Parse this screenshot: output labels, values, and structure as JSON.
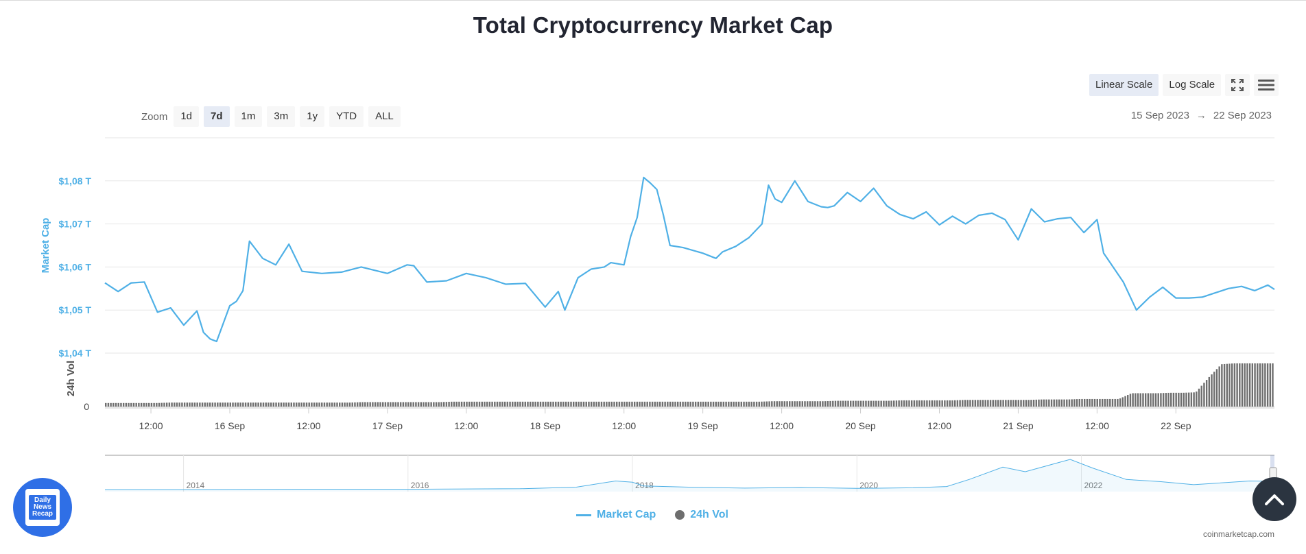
{
  "title": "Total Cryptocurrency Market Cap",
  "scale_buttons": {
    "linear": "Linear Scale",
    "log": "Log Scale",
    "active": "linear"
  },
  "zoom": {
    "label": "Zoom",
    "options": [
      "1d",
      "7d",
      "1m",
      "3m",
      "1y",
      "YTD",
      "ALL"
    ],
    "selected": "7d"
  },
  "range": {
    "from": "15 Sep 2023",
    "arrow": "→",
    "to": "22 Sep 2023"
  },
  "colors": {
    "market_cap": "#4fb0e6",
    "volume": "#6e6e6e",
    "grid": "#e6e6e6"
  },
  "icons": {
    "fullscreen": "fullscreen-icon",
    "menu": "hamburger-menu-icon",
    "scroll_top": "chevron-up-icon"
  },
  "legend": {
    "market_cap": "Market Cap",
    "volume": "24h Vol"
  },
  "credit": "coinmarketcap.com",
  "badge_text": "Daily\nNews\nRecap",
  "chart_data": {
    "type": "line",
    "ylabel": "Market Cap",
    "ylabel_volume": "24h Vol",
    "y_unit_format": "$%s T",
    "yticks": [
      "$1,04 T",
      "$1,05 T",
      "$1,06 T",
      "$1,07 T",
      "$1,08 T"
    ],
    "ytick_values": [
      1.04,
      1.05,
      1.06,
      1.07,
      1.08
    ],
    "volume_ticks": [
      "0"
    ],
    "ylim": [
      1.04,
      1.09
    ],
    "xlim": [
      "2023-09-15 05:00",
      "2023-09-22 15:00"
    ],
    "xticks": [
      "12:00",
      "16 Sep",
      "12:00",
      "17 Sep",
      "12:00",
      "18 Sep",
      "12:00",
      "19 Sep",
      "12:00",
      "20 Sep",
      "12:00",
      "21 Sep",
      "12:00",
      "22 Sep"
    ],
    "xtick_times": [
      "2023-09-15 12:00",
      "2023-09-16 00:00",
      "2023-09-16 12:00",
      "2023-09-17 00:00",
      "2023-09-17 12:00",
      "2023-09-18 00:00",
      "2023-09-18 12:00",
      "2023-09-19 00:00",
      "2023-09-19 12:00",
      "2023-09-20 00:00",
      "2023-09-20 12:00",
      "2023-09-21 00:00",
      "2023-09-21 12:00",
      "2023-09-22 00:00"
    ],
    "series": [
      {
        "name": "Market Cap",
        "x": [
          "2023-09-15 05:00",
          "2023-09-15 07:00",
          "2023-09-15 09:00",
          "2023-09-15 11:00",
          "2023-09-15 13:00",
          "2023-09-15 15:00",
          "2023-09-15 17:00",
          "2023-09-15 19:00",
          "2023-09-15 20:00",
          "2023-09-15 21:00",
          "2023-09-15 22:00",
          "2023-09-16 00:00",
          "2023-09-16 01:00",
          "2023-09-16 02:00",
          "2023-09-16 03:00",
          "2023-09-16 05:00",
          "2023-09-16 07:00",
          "2023-09-16 09:00",
          "2023-09-16 11:00",
          "2023-09-16 14:00",
          "2023-09-16 17:00",
          "2023-09-16 20:00",
          "2023-09-17 00:00",
          "2023-09-17 03:00",
          "2023-09-17 04:00",
          "2023-09-17 06:00",
          "2023-09-17 09:00",
          "2023-09-17 12:00",
          "2023-09-17 15:00",
          "2023-09-17 18:00",
          "2023-09-17 21:00",
          "2023-09-18 00:00",
          "2023-09-18 02:00",
          "2023-09-18 03:00",
          "2023-09-18 05:00",
          "2023-09-18 07:00",
          "2023-09-18 09:00",
          "2023-09-18 10:00",
          "2023-09-18 12:00",
          "2023-09-18 13:00",
          "2023-09-18 14:00",
          "2023-09-18 15:00",
          "2023-09-18 16:00",
          "2023-09-18 17:00",
          "2023-09-18 18:00",
          "2023-09-18 19:00",
          "2023-09-18 21:00",
          "2023-09-19 00:00",
          "2023-09-19 02:00",
          "2023-09-19 03:00",
          "2023-09-19 05:00",
          "2023-09-19 07:00",
          "2023-09-19 09:00",
          "2023-09-19 10:00",
          "2023-09-19 11:00",
          "2023-09-19 12:00",
          "2023-09-19 14:00",
          "2023-09-19 16:00",
          "2023-09-19 18:00",
          "2023-09-19 19:00",
          "2023-09-19 20:00",
          "2023-09-19 22:00",
          "2023-09-20 00:00",
          "2023-09-20 02:00",
          "2023-09-20 04:00",
          "2023-09-20 06:00",
          "2023-09-20 08:00",
          "2023-09-20 10:00",
          "2023-09-20 12:00",
          "2023-09-20 14:00",
          "2023-09-20 16:00",
          "2023-09-20 18:00",
          "2023-09-20 20:00",
          "2023-09-20 22:00",
          "2023-09-21 00:00",
          "2023-09-21 02:00",
          "2023-09-21 04:00",
          "2023-09-21 06:00",
          "2023-09-21 08:00",
          "2023-09-21 10:00",
          "2023-09-21 12:00",
          "2023-09-21 13:00",
          "2023-09-21 14:00",
          "2023-09-21 16:00",
          "2023-09-21 18:00",
          "2023-09-21 20:00",
          "2023-09-21 22:00",
          "2023-09-22 00:00",
          "2023-09-22 02:00",
          "2023-09-22 04:00",
          "2023-09-22 06:00",
          "2023-09-22 08:00",
          "2023-09-22 10:00",
          "2023-09-22 12:00",
          "2023-09-22 14:00",
          "2023-09-22 15:00"
        ],
        "values": [
          1.0563,
          1.0543,
          1.0563,
          1.0565,
          1.0495,
          1.0505,
          1.0465,
          1.0498,
          1.0448,
          1.0433,
          1.0427,
          1.051,
          1.052,
          1.0545,
          1.066,
          1.062,
          1.0605,
          1.0653,
          1.059,
          1.0585,
          1.0588,
          1.06,
          1.0585,
          1.0605,
          1.0603,
          1.0565,
          1.0568,
          1.0585,
          1.0575,
          1.056,
          1.0562,
          1.0507,
          1.0543,
          1.05,
          1.0575,
          1.0595,
          1.06,
          1.061,
          1.0605,
          1.067,
          1.0715,
          1.0808,
          1.0795,
          1.078,
          1.072,
          1.065,
          1.0645,
          1.0632,
          1.062,
          1.0635,
          1.0648,
          1.0668,
          1.07,
          1.079,
          1.0758,
          1.075,
          1.08,
          1.0752,
          1.074,
          1.0738,
          1.0742,
          1.0773,
          1.0752,
          1.0783,
          1.0742,
          1.0722,
          1.0712,
          1.0728,
          1.0698,
          1.0718,
          1.07,
          1.072,
          1.0725,
          1.071,
          1.0663,
          1.0735,
          1.0705,
          1.0712,
          1.0715,
          1.068,
          1.071,
          1.0632,
          1.061,
          1.0565,
          1.05,
          1.053,
          1.0553,
          1.0528,
          1.0528,
          1.053,
          1.054,
          1.055,
          1.0555,
          1.0545,
          1.0558,
          1.0548
        ]
      },
      {
        "name": "24h Vol",
        "values_relative": [
          0.08,
          0.08,
          0.08,
          0.08,
          0.08,
          0.09,
          0.09,
          0.09,
          0.09,
          0.09,
          0.09,
          0.09,
          0.09,
          0.09,
          0.09,
          0.09,
          0.09,
          0.09,
          0.09,
          0.09,
          0.1,
          0.1,
          0.1,
          0.1,
          0.1,
          0.1,
          0.1,
          0.11,
          0.11,
          0.11,
          0.11,
          0.11,
          0.11,
          0.11,
          0.11,
          0.11,
          0.11,
          0.11,
          0.11,
          0.11,
          0.11,
          0.11,
          0.11,
          0.11,
          0.11,
          0.11,
          0.11,
          0.11,
          0.11,
          0.11,
          0.11,
          0.11,
          0.12,
          0.12,
          0.12,
          0.12,
          0.12,
          0.13,
          0.13,
          0.13,
          0.13,
          0.13,
          0.14,
          0.14,
          0.14,
          0.14,
          0.14,
          0.15,
          0.15,
          0.15,
          0.15,
          0.15,
          0.15,
          0.16,
          0.16,
          0.16,
          0.17,
          0.17,
          0.17,
          0.17,
          0.3,
          0.3,
          0.3,
          0.31,
          0.31,
          0.32,
          0.65,
          0.95,
          0.97,
          0.97,
          0.97,
          0.97
        ]
      }
    ],
    "navigator": {
      "xticks": [
        "2014",
        "2016",
        "2018",
        "2020",
        "2022"
      ],
      "x_years": [
        2013.3,
        2014.0,
        2015.0,
        2016.0,
        2017.0,
        2017.5,
        2017.85,
        2018.0,
        2018.1,
        2018.5,
        2019.0,
        2019.5,
        2020.0,
        2020.5,
        2020.8,
        2021.0,
        2021.3,
        2021.5,
        2021.8,
        2021.9,
        2022.1,
        2022.4,
        2022.7,
        2023.0,
        2023.5,
        2023.72
      ],
      "values_relative": [
        0.02,
        0.02,
        0.03,
        0.03,
        0.05,
        0.1,
        0.3,
        0.26,
        0.14,
        0.1,
        0.07,
        0.09,
        0.06,
        0.08,
        0.12,
        0.35,
        0.75,
        0.6,
        0.9,
        1.0,
        0.72,
        0.35,
        0.28,
        0.18,
        0.3,
        0.29
      ]
    },
    "legend_position": "bottom-center",
    "grid": true
  }
}
